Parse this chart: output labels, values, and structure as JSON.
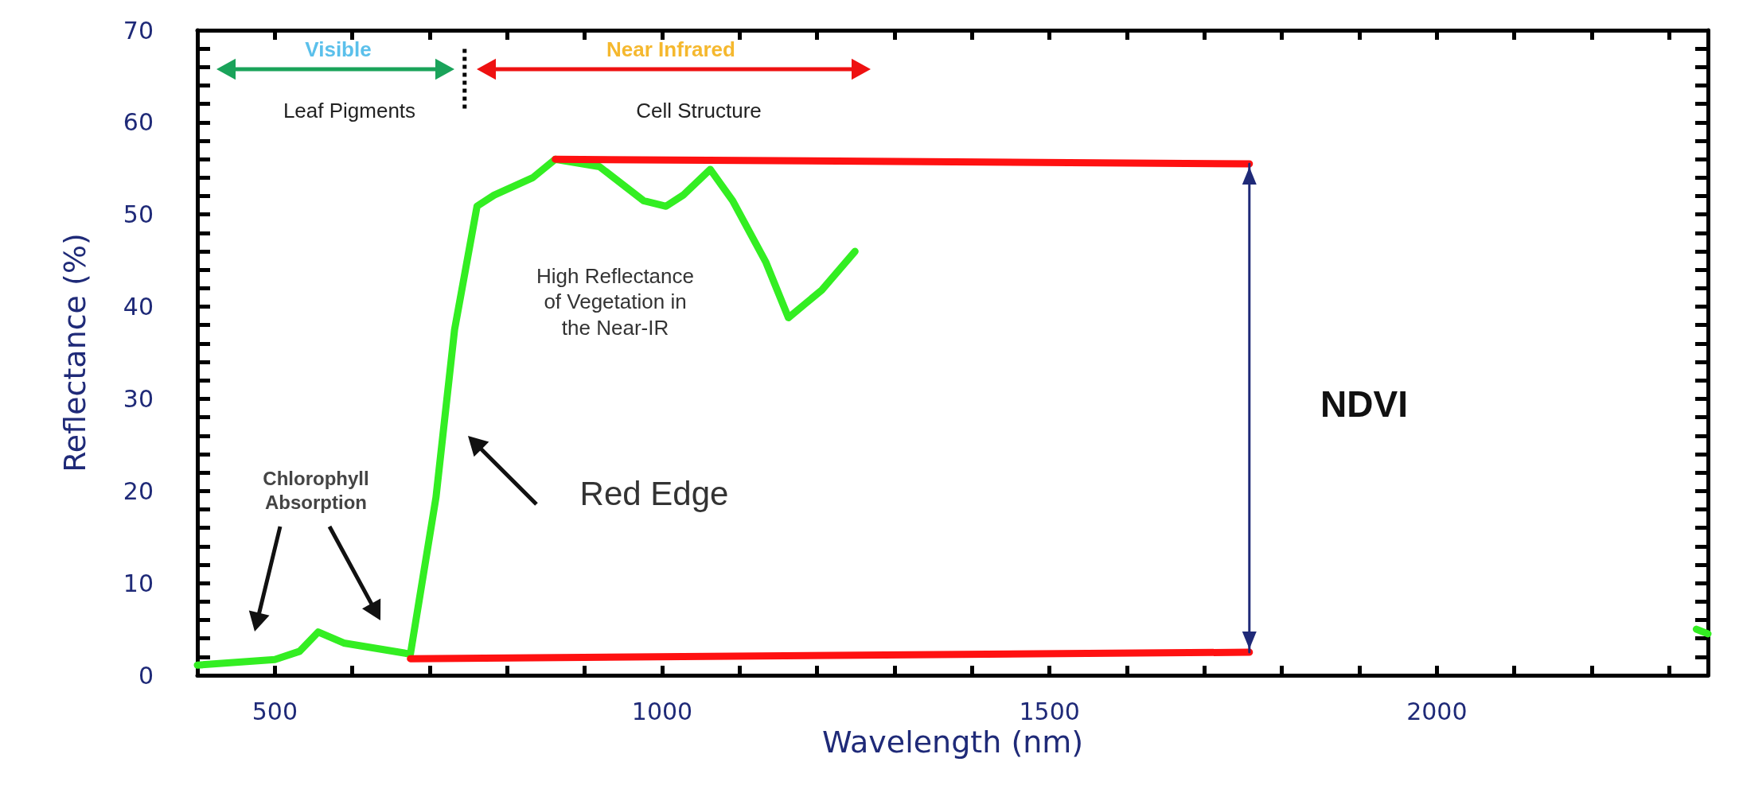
{
  "chart_data": {
    "type": "line",
    "xlabel": "Wavelength (nm)",
    "ylabel": "Reflectance (%)",
    "xlim": [
      400,
      2350
    ],
    "ylim": [
      0,
      70
    ],
    "xticks": [
      {
        "value": 500,
        "label": "500"
      },
      {
        "value": 600,
        "label": null
      },
      {
        "value": 700,
        "label": null
      },
      {
        "value": 800,
        "label": null
      },
      {
        "value": 900,
        "label": null
      },
      {
        "value": 1000,
        "label": "1000"
      },
      {
        "value": 1100,
        "label": null
      },
      {
        "value": 1200,
        "label": null
      },
      {
        "value": 1300,
        "label": null
      },
      {
        "value": 1400,
        "label": null
      },
      {
        "value": 1500,
        "label": "1500"
      },
      {
        "value": 1600,
        "label": null
      },
      {
        "value": 1700,
        "label": null
      },
      {
        "value": 1800,
        "label": null
      },
      {
        "value": 1900,
        "label": null
      },
      {
        "value": 2000,
        "label": "2000"
      },
      {
        "value": 2100,
        "label": null
      },
      {
        "value": 2200,
        "label": null
      },
      {
        "value": 2300,
        "label": null
      }
    ],
    "yticks": [
      0,
      {
        "value": 2,
        "label": null
      },
      {
        "value": 4,
        "label": null
      },
      {
        "value": 6,
        "label": null
      },
      {
        "value": 8,
        "label": null
      },
      10,
      {
        "value": 12,
        "label": null
      },
      {
        "value": 14,
        "label": null
      },
      {
        "value": 16,
        "label": null
      },
      {
        "value": 18,
        "label": null
      },
      20,
      {
        "value": 22,
        "label": null
      },
      {
        "value": 24,
        "label": null
      },
      {
        "value": 26,
        "label": null
      },
      {
        "value": 28,
        "label": null
      },
      30,
      {
        "value": 32,
        "label": null
      },
      {
        "value": 34,
        "label": null
      },
      {
        "value": 36,
        "label": null
      },
      {
        "value": 38,
        "label": null
      },
      40,
      {
        "value": 42,
        "label": null
      },
      {
        "value": 44,
        "label": null
      },
      {
        "value": 46,
        "label": null
      },
      {
        "value": 48,
        "label": null
      },
      50,
      {
        "value": 52,
        "label": null
      },
      {
        "value": 54,
        "label": null
      },
      {
        "value": 56,
        "label": null
      },
      {
        "value": 58,
        "label": null
      },
      60,
      {
        "value": 62,
        "label": null
      },
      {
        "value": 64,
        "label": null
      },
      {
        "value": 66,
        "label": null
      },
      {
        "value": 68,
        "label": null
      },
      70
    ],
    "grid": false,
    "marker": "none",
    "line_style": "solid",
    "series": [
      {
        "color": "#33ee22",
        "x": [
          400,
          500,
          532,
          556,
          589,
          675,
          708,
          732,
          761,
          783,
          833,
          862,
          919,
          976,
          1005,
          1027,
          1062,
          1091,
          1134,
          1163,
          1206,
          1249,
          2300,
          2335,
          2350
        ],
        "values": [
          1.1,
          1.7,
          2.6,
          4.7,
          3.5,
          2.3,
          19.3,
          37.5,
          50.9,
          52.1,
          54,
          56,
          55.2,
          51.5,
          50.9,
          52.1,
          54.9,
          51.5,
          44.8,
          38.8,
          41.8,
          46,
          null,
          5,
          4.5
        ]
      },
      {
        "color": "#ff1111",
        "x": [
          862,
          1758
        ],
        "values": [
          56,
          55.5
        ]
      },
      {
        "color": "#ff1111",
        "x": [
          675,
          1758
        ],
        "values": [
          1.8,
          2.5
        ]
      },
      {
        "color": "#1f2a78",
        "x": [
          1758,
          1758
        ],
        "values": [
          55.5,
          2.5
        ]
      },
      {
        "color": "#000000",
        "x": [
          745,
          745
        ],
        "values": [
          61.5,
          68
        ],
        "line_style": "dotted"
      }
    ],
    "annotations": [
      "Visible",
      "Near Infrared",
      "Leaf Pigments",
      "Cell Structure",
      "High Reflectance\nof Vegetation in\nthe Near-IR",
      "Chlorophyll\nAbsorption",
      "Red Edge",
      "NDVI"
    ]
  }
}
